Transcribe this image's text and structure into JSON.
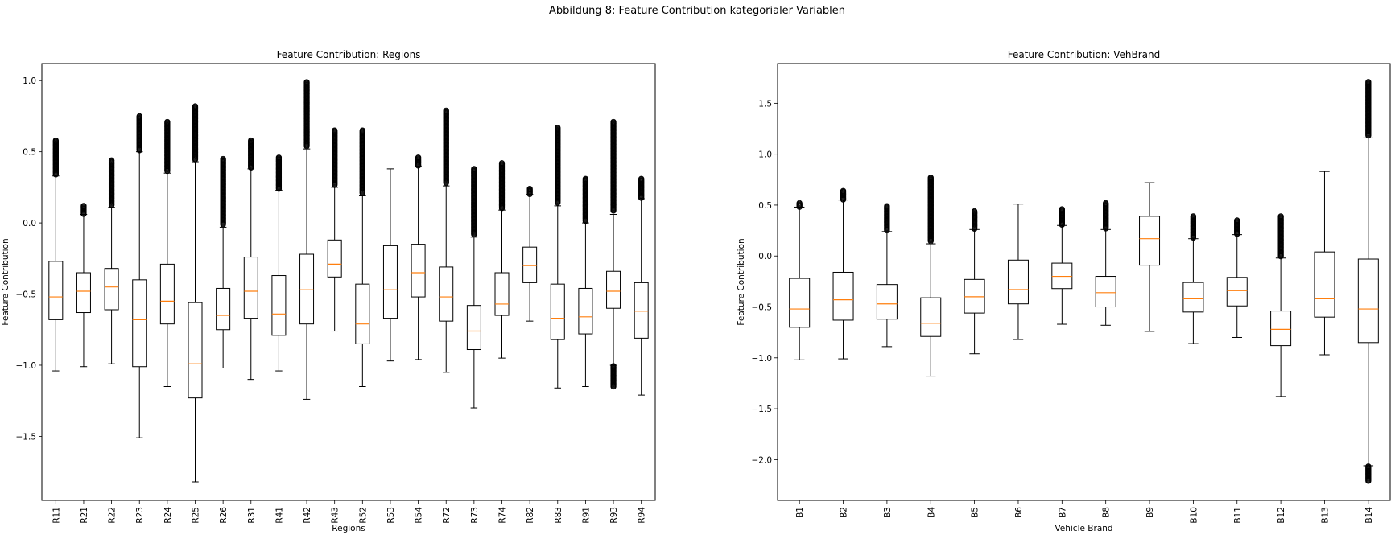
{
  "figure": {
    "suptitle": "Abbildung 8: Feature Contribution kategorialer Variablen"
  },
  "chart_data": [
    {
      "type": "boxplot",
      "title": "Feature Contribution: Regions",
      "xlabel": "Regions",
      "ylabel": "Feature Contribution",
      "ylim": [
        -1.95,
        1.12
      ],
      "yticks": [
        1.0,
        0.5,
        0.0,
        -0.5,
        -1.0,
        -1.5
      ],
      "ytick_labels": [
        "1.0",
        "0.5",
        "0.0",
        "−0.5",
        "−1.0",
        "−1.5"
      ],
      "categories": [
        "R11",
        "R21",
        "R22",
        "R23",
        "R24",
        "R25",
        "R26",
        "R31",
        "R41",
        "R42",
        "R43",
        "R52",
        "R53",
        "R54",
        "R72",
        "R73",
        "R74",
        "R82",
        "R83",
        "R91",
        "R93",
        "R94"
      ],
      "boxes": [
        {
          "q1": -0.68,
          "median": -0.52,
          "q3": -0.27,
          "whislo": -1.04,
          "whishi": 0.33,
          "flier_high": 0.58
        },
        {
          "q1": -0.63,
          "median": -0.48,
          "q3": -0.35,
          "whislo": -1.01,
          "whishi": 0.06,
          "flier_high": 0.12
        },
        {
          "q1": -0.61,
          "median": -0.45,
          "q3": -0.32,
          "whislo": -0.99,
          "whishi": 0.11,
          "flier_high": 0.44
        },
        {
          "q1": -1.01,
          "median": -0.68,
          "q3": -0.4,
          "whislo": -1.51,
          "whishi": 0.5,
          "flier_high": 0.75
        },
        {
          "q1": -0.71,
          "median": -0.55,
          "q3": -0.29,
          "whislo": -1.15,
          "whishi": 0.35,
          "flier_high": 0.71
        },
        {
          "q1": -1.23,
          "median": -0.99,
          "q3": -0.56,
          "whislo": -1.82,
          "whishi": 0.43,
          "flier_high": 0.82
        },
        {
          "q1": -0.75,
          "median": -0.65,
          "q3": -0.46,
          "whislo": -1.02,
          "whishi": -0.03,
          "flier_high": 0.45
        },
        {
          "q1": -0.67,
          "median": -0.48,
          "q3": -0.24,
          "whislo": -1.1,
          "whishi": 0.38,
          "flier_high": 0.58
        },
        {
          "q1": -0.79,
          "median": -0.64,
          "q3": -0.37,
          "whislo": -1.04,
          "whishi": 0.23,
          "flier_high": 0.46
        },
        {
          "q1": -0.71,
          "median": -0.47,
          "q3": -0.22,
          "whislo": -1.24,
          "whishi": 0.52,
          "flier_high": 0.99
        },
        {
          "q1": -0.38,
          "median": -0.29,
          "q3": -0.12,
          "whislo": -0.76,
          "whishi": 0.25,
          "flier_high": 0.65
        },
        {
          "q1": -0.85,
          "median": -0.71,
          "q3": -0.43,
          "whislo": -1.15,
          "whishi": 0.19,
          "flier_high": 0.65
        },
        {
          "q1": -0.67,
          "median": -0.47,
          "q3": -0.16,
          "whislo": -0.97,
          "whishi": 0.38
        },
        {
          "q1": -0.52,
          "median": -0.35,
          "q3": -0.15,
          "whislo": -0.96,
          "whishi": 0.4,
          "flier_high": 0.46
        },
        {
          "q1": -0.69,
          "median": -0.52,
          "q3": -0.31,
          "whislo": -1.05,
          "whishi": 0.26,
          "flier_high": 0.79
        },
        {
          "q1": -0.89,
          "median": -0.76,
          "q3": -0.58,
          "whislo": -1.3,
          "whishi": -0.1,
          "flier_high": 0.38
        },
        {
          "q1": -0.65,
          "median": -0.57,
          "q3": -0.35,
          "whislo": -0.95,
          "whishi": 0.09,
          "flier_high": 0.42
        },
        {
          "q1": -0.42,
          "median": -0.3,
          "q3": -0.17,
          "whislo": -0.69,
          "whishi": 0.2,
          "flier_high": 0.24
        },
        {
          "q1": -0.82,
          "median": -0.67,
          "q3": -0.43,
          "whislo": -1.16,
          "whishi": 0.12,
          "flier_high": 0.67
        },
        {
          "q1": -0.78,
          "median": -0.66,
          "q3": -0.46,
          "whislo": -1.15,
          "whishi": 0.0,
          "flier_high": 0.31
        },
        {
          "q1": -0.6,
          "median": -0.48,
          "q3": -0.34,
          "whislo": -1.0,
          "whishi": 0.06,
          "flier_high": 0.71,
          "flier_low": -1.15
        },
        {
          "q1": -0.81,
          "median": -0.62,
          "q3": -0.42,
          "whislo": -1.21,
          "whishi": 0.17,
          "flier_high": 0.31
        }
      ]
    },
    {
      "type": "boxplot",
      "title": "Feature Contribution: VehBrand",
      "xlabel": "Vehicle Brand",
      "ylabel": "Feature Contribution",
      "ylim": [
        -2.4,
        1.89
      ],
      "yticks": [
        1.5,
        1.0,
        0.5,
        0.0,
        -0.5,
        -1.0,
        -1.5,
        -2.0
      ],
      "ytick_labels": [
        "1.5",
        "1.0",
        "0.5",
        "0.0",
        "−0.5",
        "−1.0",
        "−1.5",
        "−2.0"
      ],
      "categories": [
        "B1",
        "B2",
        "B3",
        "B4",
        "B5",
        "B6",
        "B7",
        "B8",
        "B9",
        "B10",
        "B11",
        "B12",
        "B13",
        "B14"
      ],
      "boxes": [
        {
          "q1": -0.7,
          "median": -0.52,
          "q3": -0.22,
          "whislo": -1.02,
          "whishi": 0.48,
          "flier_high": 0.52
        },
        {
          "q1": -0.63,
          "median": -0.43,
          "q3": -0.16,
          "whislo": -1.01,
          "whishi": 0.55,
          "flier_high": 0.64
        },
        {
          "q1": -0.62,
          "median": -0.47,
          "q3": -0.28,
          "whislo": -0.89,
          "whishi": 0.24,
          "flier_high": 0.49
        },
        {
          "q1": -0.79,
          "median": -0.66,
          "q3": -0.41,
          "whislo": -1.18,
          "whishi": 0.12,
          "flier_high": 0.77
        },
        {
          "q1": -0.56,
          "median": -0.4,
          "q3": -0.23,
          "whislo": -0.96,
          "whishi": 0.26,
          "flier_high": 0.44
        },
        {
          "q1": -0.47,
          "median": -0.33,
          "q3": -0.04,
          "whislo": -0.82,
          "whishi": 0.51
        },
        {
          "q1": -0.32,
          "median": -0.2,
          "q3": -0.07,
          "whislo": -0.67,
          "whishi": 0.3,
          "flier_high": 0.46
        },
        {
          "q1": -0.5,
          "median": -0.36,
          "q3": -0.2,
          "whislo": -0.68,
          "whishi": 0.26,
          "flier_high": 0.52
        },
        {
          "q1": -0.09,
          "median": 0.17,
          "q3": 0.39,
          "whislo": -0.74,
          "whishi": 0.72
        },
        {
          "q1": -0.55,
          "median": -0.42,
          "q3": -0.26,
          "whislo": -0.86,
          "whishi": 0.17,
          "flier_high": 0.39
        },
        {
          "q1": -0.49,
          "median": -0.34,
          "q3": -0.21,
          "whislo": -0.8,
          "whishi": 0.21,
          "flier_high": 0.35
        },
        {
          "q1": -0.88,
          "median": -0.72,
          "q3": -0.54,
          "whislo": -1.38,
          "whishi": -0.02,
          "flier_high": 0.39
        },
        {
          "q1": -0.6,
          "median": -0.42,
          "q3": 0.04,
          "whislo": -0.97,
          "whishi": 0.83
        },
        {
          "q1": -0.85,
          "median": -0.52,
          "q3": -0.03,
          "whislo": -2.06,
          "whishi": 1.16,
          "flier_high": 1.71,
          "flier_low": -2.21
        }
      ]
    }
  ],
  "colors": {
    "box": "#000000",
    "median": "#ff7f0e",
    "background": "#ffffff"
  }
}
